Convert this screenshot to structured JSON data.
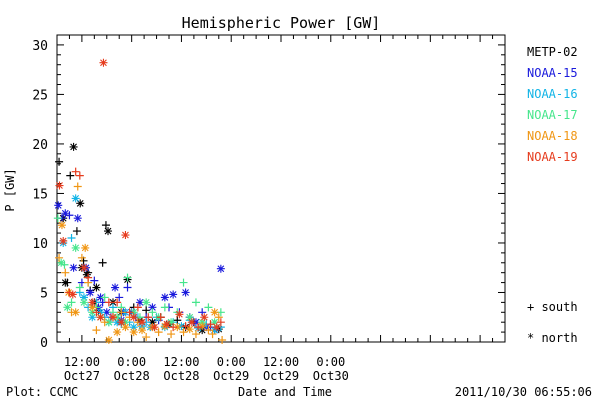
{
  "chart_data": {
    "type": "scatter",
    "title": "Hemispheric Power [GW]",
    "xlabel": "Date and Time",
    "ylabel": "P [GW]",
    "ylim": [
      0,
      31
    ],
    "xlim_hours": [
      0,
      108
    ],
    "x_unit": "hours from 2011-10-26 06:00 UT",
    "y_ticks": [
      "0",
      "5",
      "10",
      "15",
      "20",
      "25",
      "30"
    ],
    "x_ticks": [
      {
        "hour": 6,
        "time": "12:00",
        "date": "Oct27"
      },
      {
        "hour": 18,
        "time": "0:00",
        "date": "Oct28"
      },
      {
        "hour": 30,
        "time": "12:00",
        "date": "Oct28"
      },
      {
        "hour": 42,
        "time": "0:00",
        "date": "Oct29"
      },
      {
        "hour": 54,
        "time": "12:00",
        "date": "Oct29"
      },
      {
        "hour": 66,
        "time": "0:00",
        "date": "Oct30"
      }
    ],
    "legend_placement": "right",
    "marker_key": [
      {
        "symbol": "+",
        "label": "south"
      },
      {
        "symbol": "*",
        "label": "north"
      }
    ],
    "series": [
      {
        "name": "METP-02",
        "color": "#000000",
        "points": [
          [
            0.5,
            18.2,
            "s"
          ],
          [
            1.5,
            12.5,
            "n"
          ],
          [
            2.5,
            6.0,
            "s"
          ],
          [
            3.2,
            16.8,
            "s"
          ],
          [
            4.0,
            19.7,
            "n"
          ],
          [
            4.8,
            11.2,
            "s"
          ],
          [
            5.6,
            14.0,
            "n"
          ],
          [
            6.4,
            8.2,
            "s"
          ],
          [
            7.2,
            6.8,
            "n"
          ],
          [
            8.0,
            5.2,
            "s"
          ],
          [
            9.0,
            4.0,
            "n"
          ],
          [
            10.0,
            3.2,
            "s"
          ],
          [
            11.0,
            8.0,
            "s"
          ],
          [
            11.8,
            11.8,
            "s"
          ],
          [
            12.3,
            11.2,
            "n"
          ],
          [
            13.5,
            4.0,
            "n"
          ],
          [
            15.5,
            3.0,
            "n"
          ],
          [
            17.0,
            6.3,
            "n"
          ],
          [
            18.5,
            3.5,
            "s"
          ],
          [
            20.0,
            2.2,
            "n"
          ],
          [
            21.5,
            3.2,
            "s"
          ],
          [
            23.0,
            2.0,
            "n"
          ],
          [
            25.0,
            2.5,
            "s"
          ],
          [
            27.0,
            1.8,
            "n"
          ],
          [
            29.0,
            2.2,
            "s"
          ],
          [
            31.0,
            1.5,
            "n"
          ],
          [
            33.0,
            2.0,
            "s"
          ],
          [
            35.0,
            1.2,
            "n"
          ],
          [
            37.0,
            1.5,
            "s"
          ],
          [
            39.0,
            1.3,
            "n"
          ],
          [
            2.0,
            6.0,
            "n"
          ],
          [
            6.0,
            7.5,
            "n"
          ],
          [
            7.5,
            7.0,
            "s"
          ],
          [
            9.5,
            5.5,
            "n"
          ]
        ]
      },
      {
        "name": "NOAA-15",
        "color": "#1a1adc",
        "points": [
          [
            0.3,
            13.8,
            "n"
          ],
          [
            1.2,
            12.5,
            "s"
          ],
          [
            2.0,
            13.0,
            "n"
          ],
          [
            3.0,
            12.8,
            "s"
          ],
          [
            4.0,
            7.5,
            "n"
          ],
          [
            5.0,
            12.5,
            "n"
          ],
          [
            6.0,
            6.0,
            "s"
          ],
          [
            7.0,
            7.5,
            "n"
          ],
          [
            8.0,
            5.0,
            "n"
          ],
          [
            9.0,
            6.2,
            "s"
          ],
          [
            10.0,
            3.5,
            "n"
          ],
          [
            11.0,
            4.0,
            "s"
          ],
          [
            12.0,
            3.0,
            "n"
          ],
          [
            13.0,
            2.5,
            "s"
          ],
          [
            14.0,
            5.5,
            "n"
          ],
          [
            15.0,
            4.5,
            "s"
          ],
          [
            16.0,
            3.0,
            "n"
          ],
          [
            17.0,
            5.5,
            "s"
          ],
          [
            18.0,
            3.0,
            "n"
          ],
          [
            19.0,
            2.5,
            "s"
          ],
          [
            20.0,
            4.0,
            "n"
          ],
          [
            21.5,
            2.5,
            "s"
          ],
          [
            23.0,
            3.5,
            "n"
          ],
          [
            24.5,
            2.2,
            "s"
          ],
          [
            26.0,
            4.5,
            "n"
          ],
          [
            27.0,
            3.5,
            "s"
          ],
          [
            28.0,
            4.8,
            "n"
          ],
          [
            29.5,
            3.0,
            "s"
          ],
          [
            31.0,
            5.0,
            "n"
          ],
          [
            32.0,
            2.5,
            "s"
          ],
          [
            33.5,
            2.0,
            "n"
          ],
          [
            35.0,
            3.0,
            "s"
          ],
          [
            36.0,
            1.5,
            "n"
          ],
          [
            37.0,
            1.5,
            "s"
          ],
          [
            38.0,
            1.2,
            "n"
          ],
          [
            39.5,
            7.4,
            "n"
          ],
          [
            10.5,
            4.5,
            "n"
          ],
          [
            15.5,
            2.2,
            "n"
          ]
        ]
      },
      {
        "name": "NOAA-16",
        "color": "#12b4e6",
        "points": [
          [
            1.5,
            10.0,
            "n"
          ],
          [
            3.5,
            10.5,
            "s"
          ],
          [
            4.5,
            14.5,
            "n"
          ],
          [
            5.5,
            5.0,
            "s"
          ],
          [
            6.5,
            4.5,
            "n"
          ],
          [
            7.5,
            3.5,
            "s"
          ],
          [
            8.5,
            2.5,
            "n"
          ],
          [
            9.5,
            4.0,
            "s"
          ],
          [
            10.5,
            3.0,
            "n"
          ],
          [
            11.5,
            2.5,
            "s"
          ],
          [
            12.5,
            2.0,
            "n"
          ],
          [
            13.5,
            3.5,
            "s"
          ],
          [
            14.5,
            2.0,
            "n"
          ],
          [
            15.5,
            1.8,
            "s"
          ],
          [
            16.5,
            3.0,
            "n"
          ],
          [
            17.5,
            2.0,
            "s"
          ],
          [
            18.5,
            1.5,
            "n"
          ],
          [
            19.5,
            2.5,
            "s"
          ],
          [
            20.5,
            1.6,
            "n"
          ],
          [
            21.5,
            2.0,
            "s"
          ],
          [
            22.5,
            1.5,
            "n"
          ],
          [
            24.0,
            2.5,
            "s"
          ],
          [
            26.0,
            1.5,
            "n"
          ],
          [
            28.0,
            2.0,
            "s"
          ],
          [
            30.0,
            1.6,
            "n"
          ],
          [
            32.0,
            2.2,
            "s"
          ],
          [
            34.0,
            1.4,
            "n"
          ],
          [
            36.0,
            1.8,
            "s"
          ],
          [
            38.0,
            1.2,
            "n"
          ],
          [
            39.5,
            1.5,
            "s"
          ]
        ]
      },
      {
        "name": "NOAA-17",
        "color": "#46e68c",
        "points": [
          [
            0.2,
            12.5,
            "s"
          ],
          [
            1.0,
            8.0,
            "n"
          ],
          [
            1.8,
            7.8,
            "s"
          ],
          [
            2.5,
            3.5,
            "n"
          ],
          [
            3.5,
            4.0,
            "s"
          ],
          [
            4.5,
            9.5,
            "n"
          ],
          [
            5.5,
            5.5,
            "s"
          ],
          [
            6.5,
            4.0,
            "n"
          ],
          [
            7.5,
            6.0,
            "s"
          ],
          [
            8.5,
            3.0,
            "n"
          ],
          [
            9.5,
            3.5,
            "s"
          ],
          [
            10.5,
            2.5,
            "n"
          ],
          [
            11.5,
            4.5,
            "s"
          ],
          [
            12.5,
            2.0,
            "n"
          ],
          [
            13.5,
            3.0,
            "s"
          ],
          [
            14.5,
            2.5,
            "n"
          ],
          [
            15.5,
            3.5,
            "s"
          ],
          [
            16.5,
            2.0,
            "n"
          ],
          [
            17.0,
            6.5,
            "s"
          ],
          [
            18.5,
            3.0,
            "n"
          ],
          [
            20.0,
            2.5,
            "s"
          ],
          [
            21.5,
            4.0,
            "n"
          ],
          [
            23.0,
            3.0,
            "s"
          ],
          [
            24.5,
            2.5,
            "n"
          ],
          [
            26.0,
            3.5,
            "s"
          ],
          [
            27.5,
            2.0,
            "n"
          ],
          [
            29.0,
            3.0,
            "s"
          ],
          [
            30.5,
            6.0,
            "s"
          ],
          [
            32.0,
            2.5,
            "n"
          ],
          [
            33.5,
            4.0,
            "s"
          ],
          [
            35.0,
            2.0,
            "n"
          ],
          [
            36.5,
            3.5,
            "s"
          ],
          [
            38.0,
            2.0,
            "n"
          ],
          [
            39.5,
            3.0,
            "s"
          ]
        ]
      },
      {
        "name": "NOAA-18",
        "color": "#f09614",
        "points": [
          [
            0.5,
            8.5,
            "s"
          ],
          [
            1.2,
            11.8,
            "n"
          ],
          [
            2.0,
            7.0,
            "s"
          ],
          [
            2.8,
            5.0,
            "n"
          ],
          [
            3.5,
            3.0,
            "s"
          ],
          [
            4.5,
            3.0,
            "n"
          ],
          [
            5.0,
            15.7,
            "s"
          ],
          [
            6.0,
            8.5,
            "s"
          ],
          [
            6.8,
            9.5,
            "n"
          ],
          [
            7.5,
            6.0,
            "s"
          ],
          [
            8.5,
            3.5,
            "n"
          ],
          [
            9.5,
            1.2,
            "s"
          ],
          [
            10.5,
            2.5,
            "n"
          ],
          [
            11.5,
            2.0,
            "s"
          ],
          [
            12.5,
            0.2,
            "n"
          ],
          [
            13.5,
            2.5,
            "s"
          ],
          [
            14.5,
            1.0,
            "n"
          ],
          [
            15.5,
            3.0,
            "s"
          ],
          [
            16.5,
            1.5,
            "n"
          ],
          [
            17.5,
            2.5,
            "s"
          ],
          [
            18.5,
            1.0,
            "n"
          ],
          [
            19.5,
            2.0,
            "s"
          ],
          [
            20.5,
            1.2,
            "n"
          ],
          [
            21.5,
            0.5,
            "s"
          ],
          [
            23.0,
            1.5,
            "n"
          ],
          [
            24.5,
            1.0,
            "s"
          ],
          [
            26.0,
            1.6,
            "n"
          ],
          [
            27.5,
            0.8,
            "s"
          ],
          [
            29.0,
            1.5,
            "n"
          ],
          [
            30.5,
            1.0,
            "s"
          ],
          [
            32.0,
            1.3,
            "n"
          ],
          [
            33.5,
            0.8,
            "s"
          ],
          [
            35.0,
            1.6,
            "n"
          ],
          [
            36.5,
            1.2,
            "s"
          ],
          [
            38.0,
            3.0,
            "n"
          ],
          [
            39.0,
            2.5,
            "s"
          ],
          [
            39.8,
            0.2,
            "s"
          ],
          [
            37.5,
            0.8,
            "s"
          ]
        ]
      },
      {
        "name": "NOAA-19",
        "color": "#e63c1e",
        "points": [
          [
            0.6,
            15.8,
            "n"
          ],
          [
            1.5,
            10.2,
            "n"
          ],
          [
            3.0,
            5.0,
            "s"
          ],
          [
            3.8,
            4.8,
            "n"
          ],
          [
            4.5,
            17.2,
            "s"
          ],
          [
            5.5,
            16.8,
            "s"
          ],
          [
            6.5,
            7.5,
            "n"
          ],
          [
            7.5,
            6.5,
            "s"
          ],
          [
            8.5,
            4.0,
            "n"
          ],
          [
            9.5,
            3.0,
            "s"
          ],
          [
            10.5,
            2.5,
            "n"
          ],
          [
            11.2,
            28.2,
            "n"
          ],
          [
            12.5,
            4.0,
            "s"
          ],
          [
            13.5,
            2.5,
            "n"
          ],
          [
            14.5,
            4.0,
            "s"
          ],
          [
            15.5,
            2.0,
            "n"
          ],
          [
            16.5,
            10.8,
            "n"
          ],
          [
            17.5,
            3.0,
            "s"
          ],
          [
            18.5,
            2.5,
            "n"
          ],
          [
            19.5,
            3.5,
            "s"
          ],
          [
            20.5,
            2.0,
            "n"
          ],
          [
            22.0,
            2.5,
            "s"
          ],
          [
            23.5,
            1.5,
            "n"
          ],
          [
            25.0,
            2.5,
            "s"
          ],
          [
            26.5,
            1.8,
            "n"
          ],
          [
            28.0,
            1.5,
            "s"
          ],
          [
            29.5,
            2.8,
            "n"
          ],
          [
            31.0,
            1.6,
            "s"
          ],
          [
            32.5,
            2.0,
            "n"
          ],
          [
            34.0,
            1.5,
            "s"
          ],
          [
            35.5,
            2.5,
            "n"
          ],
          [
            37.0,
            1.8,
            "s"
          ],
          [
            38.5,
            1.5,
            "n"
          ],
          [
            39.5,
            2.0,
            "s"
          ]
        ]
      }
    ]
  },
  "footer": {
    "credit": "Plot: CCMC",
    "timestamp": "2011/10/30 06:55:06"
  }
}
